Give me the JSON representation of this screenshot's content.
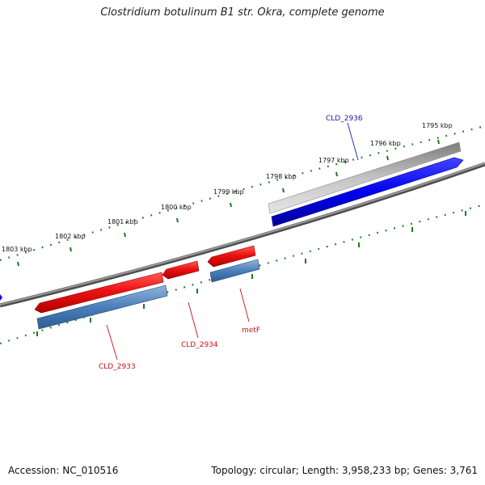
{
  "title": "Clostridium botulinum B1 str. Okra, complete genome",
  "footer": {
    "accession": "Accession: NC_010516",
    "topology": "Topology: circular; Length: 3,958,233 bp; Genes: 3,761"
  },
  "scale_labels": [
    "1795 kbp",
    "1796 kbp",
    "1797 kbp",
    "1798 kbp",
    "1799 kbp",
    "1800 kbp",
    "1801 kbp",
    "1802 kbp",
    "1803 kbp"
  ],
  "gene_labels": {
    "cld2936": "CLD_2936",
    "cld2933": "CLD_2933",
    "cld2934": "CLD_2934",
    "metf": "metF"
  },
  "colors": {
    "backbone": "#7a7a7a",
    "tick_track": "#1f7a1f",
    "forward_cds": "#e8121e",
    "forward_cds_shadow": "#4a79b8",
    "reverse_cds": "#0000ee",
    "reverse_cds_shadow": "#b8b8b8",
    "label_blue": "#1a1aa8",
    "label_red": "#c81010"
  }
}
